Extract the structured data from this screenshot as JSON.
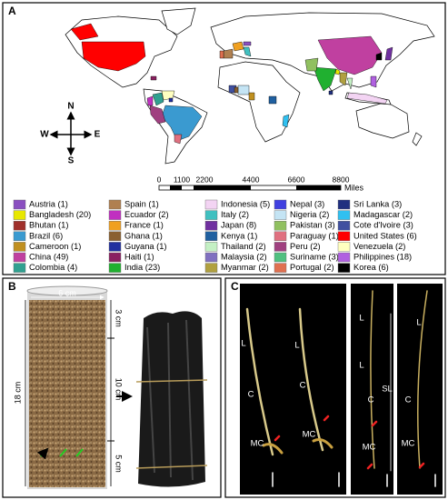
{
  "panels": {
    "a": "A",
    "b": "B",
    "c": "C"
  },
  "map": {
    "compass": {
      "n": "N",
      "s": "S",
      "e": "E",
      "w": "W"
    },
    "scale_labels": [
      "0",
      "1100",
      "2200",
      "4400",
      "6600",
      "8800"
    ],
    "scale_unit": "Miles",
    "legend": [
      {
        "label": "Austria (1)",
        "color": "#8a4fc0"
      },
      {
        "label": "Bangladesh (20)",
        "color": "#e8e800"
      },
      {
        "label": "Bhutan (1)",
        "color": "#a0302a"
      },
      {
        "label": "Brazil (6)",
        "color": "#3a9ad0"
      },
      {
        "label": "Cameroon (1)",
        "color": "#c09020"
      },
      {
        "label": "China (49)",
        "color": "#c040a0"
      },
      {
        "label": "Colombia (4)",
        "color": "#30a090"
      },
      {
        "label": "Spain (1)",
        "color": "#b08050"
      },
      {
        "label": "Ecuador (2)",
        "color": "#c030c0"
      },
      {
        "label": "France (1)",
        "color": "#f0a020"
      },
      {
        "label": "Ghana (1)",
        "color": "#8a6030"
      },
      {
        "label": "Guyana (1)",
        "color": "#2030a0"
      },
      {
        "label": "Haiti (1)",
        "color": "#8a2060"
      },
      {
        "label": "India (23)",
        "color": "#20b030"
      },
      {
        "label": "Indonesia (5)",
        "color": "#f3d4f3"
      },
      {
        "label": "Italy (2)",
        "color": "#40c0c0"
      },
      {
        "label": "Japan (8)",
        "color": "#7030a0"
      },
      {
        "label": "Kenya (1)",
        "color": "#2060a0"
      },
      {
        "label": "Thailand (2)",
        "color": "#c4f0c4"
      },
      {
        "label": "Malaysia (2)",
        "color": "#8070c0"
      },
      {
        "label": "Myanmar (2)",
        "color": "#b0a040"
      },
      {
        "label": "Nepal (3)",
        "color": "#4040e0"
      },
      {
        "label": "Nigeria (2)",
        "color": "#c4e4f4"
      },
      {
        "label": "Pakistan (3)",
        "color": "#90c060"
      },
      {
        "label": "Paraguay (1)",
        "color": "#e07080"
      },
      {
        "label": "Peru (2)",
        "color": "#a04080"
      },
      {
        "label": "Suriname (3)",
        "color": "#50c080"
      },
      {
        "label": "Portugal (2)",
        "color": "#e07050"
      },
      {
        "label": "Sri Lanka (3)",
        "color": "#203080"
      },
      {
        "label": "Madagascar (2)",
        "color": "#30c0f0"
      },
      {
        "label": "Cote d'Ivoire (3)",
        "color": "#4050a0"
      },
      {
        "label": "United States (6)",
        "color": "#ff0000"
      },
      {
        "label": "Venezuela (2)",
        "color": "#ffffc0"
      },
      {
        "label": "Philippines (18)",
        "color": "#b060e0"
      },
      {
        "label": "Korea (6)",
        "color": "#000000"
      }
    ]
  },
  "panel_b": {
    "width": "6 cm",
    "top": "3 cm",
    "middle": "10 cm",
    "height": "18 cm",
    "bottom": "5 cm"
  },
  "panel_c": {
    "image_1": [
      "L",
      "C",
      "MC",
      "L",
      "C",
      "MC"
    ],
    "image_2": [
      "L",
      "L",
      "C",
      "SL",
      "MC"
    ],
    "image_3": [
      "L",
      "C",
      "MC"
    ]
  }
}
